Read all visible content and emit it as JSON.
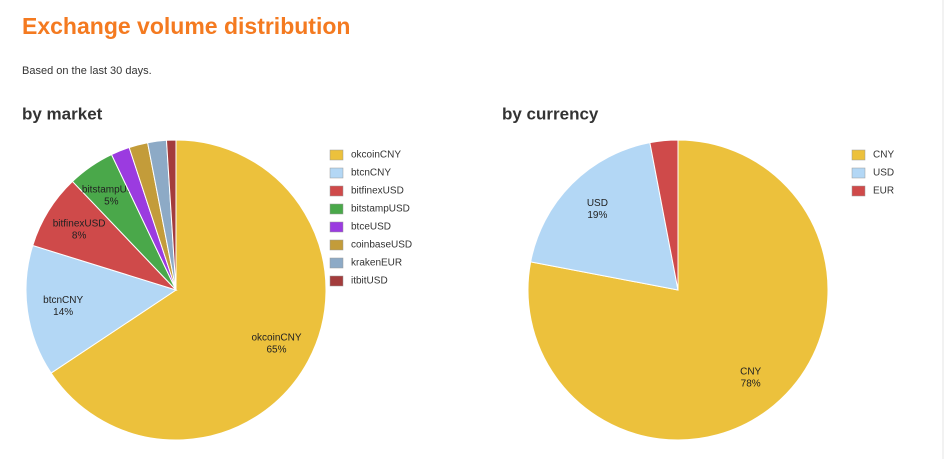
{
  "header": {
    "title": "Exchange volume distribution",
    "subtitle": "Based on the last 30 days."
  },
  "chart_data": [
    {
      "type": "pie",
      "title": "by market",
      "categories": [
        "okcoinCNY",
        "btcnCNY",
        "bitfinexUSD",
        "bitstampUSD",
        "btceUSD",
        "coinbaseUSD",
        "krakenEUR",
        "itbitUSD"
      ],
      "values": [
        65,
        14,
        8,
        5,
        2,
        2,
        2,
        1
      ],
      "value_labels": [
        "65%",
        "14%",
        "8%",
        "5%",
        null,
        null,
        null,
        null
      ],
      "colors": [
        "#ecc13c",
        "#b3d7f5",
        "#cf4a4a",
        "#4aa84a",
        "#9b3be0",
        "#c39c3a",
        "#8daac6",
        "#a33c3c"
      ],
      "legend": "right"
    },
    {
      "type": "pie",
      "title": "by currency",
      "categories": [
        "CNY",
        "USD",
        "EUR"
      ],
      "values": [
        78,
        19,
        3
      ],
      "value_labels": [
        "78%",
        "19%",
        null
      ],
      "colors": [
        "#ecc13c",
        "#b3d7f5",
        "#cf4a4a"
      ],
      "legend": "right"
    }
  ]
}
